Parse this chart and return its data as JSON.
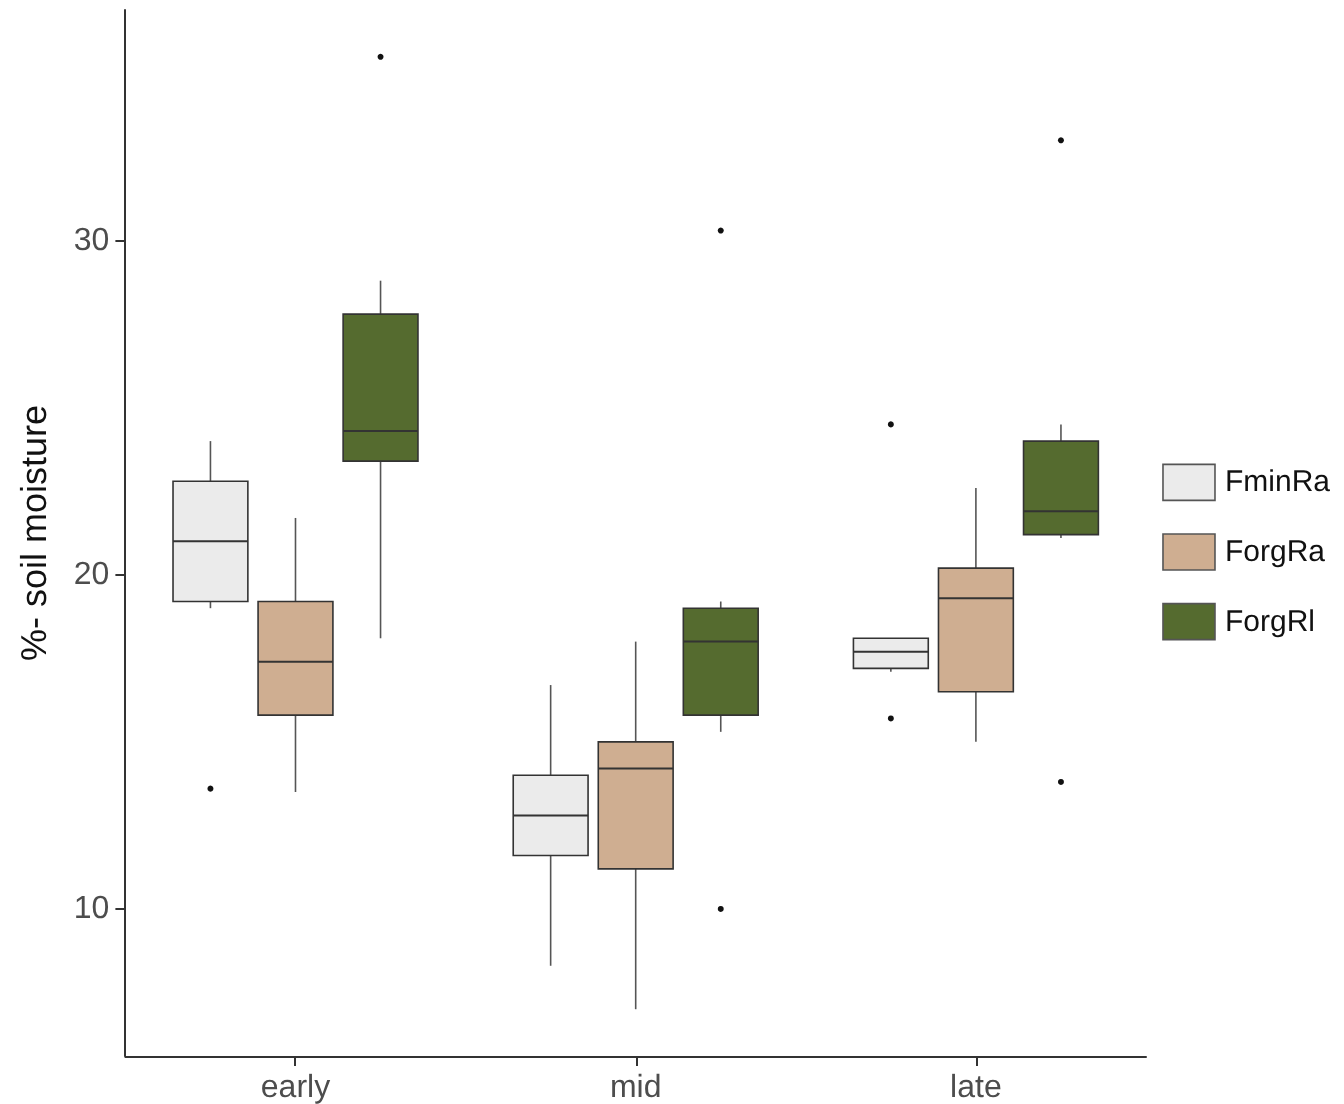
{
  "chart_data": {
    "type": "box",
    "ylabel": "%- soil moisture",
    "categories": [
      "early",
      "mid",
      "late"
    ],
    "ylim": [
      5.6,
      36.9
    ],
    "yticks": [
      10,
      20,
      30
    ],
    "legend": "right",
    "series": [
      {
        "name": "FminRa",
        "color": "#ebebeb",
        "boxes": [
          {
            "low": 19.0,
            "q1": 19.2,
            "median": 21.0,
            "q3": 22.8,
            "high": 24.0,
            "outliers": [
              13.6
            ]
          },
          {
            "low": 8.3,
            "q1": 11.6,
            "median": 12.8,
            "q3": 14.0,
            "high": 16.7
          },
          {
            "low": 17.1,
            "q1": 17.2,
            "median": 17.7,
            "q3": 18.1,
            "high": 18.1,
            "outliers": [
              24.5,
              15.7
            ]
          }
        ]
      },
      {
        "name": "ForgRa",
        "color": "#cfae91",
        "boxes": [
          {
            "low": 13.5,
            "q1": 15.8,
            "median": 17.4,
            "q3": 19.2,
            "high": 21.7
          },
          {
            "low": 7.0,
            "q1": 11.2,
            "median": 14.2,
            "q3": 15.0,
            "high": 18.0
          },
          {
            "low": 15.0,
            "q1": 16.5,
            "median": 19.3,
            "q3": 20.2,
            "high": 22.6
          }
        ]
      },
      {
        "name": "ForgRl",
        "color": "#556b2f",
        "boxes": [
          {
            "low": 18.1,
            "q1": 23.4,
            "median": 24.3,
            "q3": 27.8,
            "high": 28.8,
            "outliers": [
              35.5
            ]
          },
          {
            "low": 15.3,
            "q1": 15.8,
            "median": 18.0,
            "q3": 19.0,
            "high": 19.2,
            "outliers": [
              30.3,
              10.0
            ]
          },
          {
            "low": 21.1,
            "q1": 21.2,
            "median": 21.9,
            "q3": 24.0,
            "high": 24.5,
            "outliers": [
              33.0,
              13.8
            ]
          }
        ]
      }
    ]
  }
}
